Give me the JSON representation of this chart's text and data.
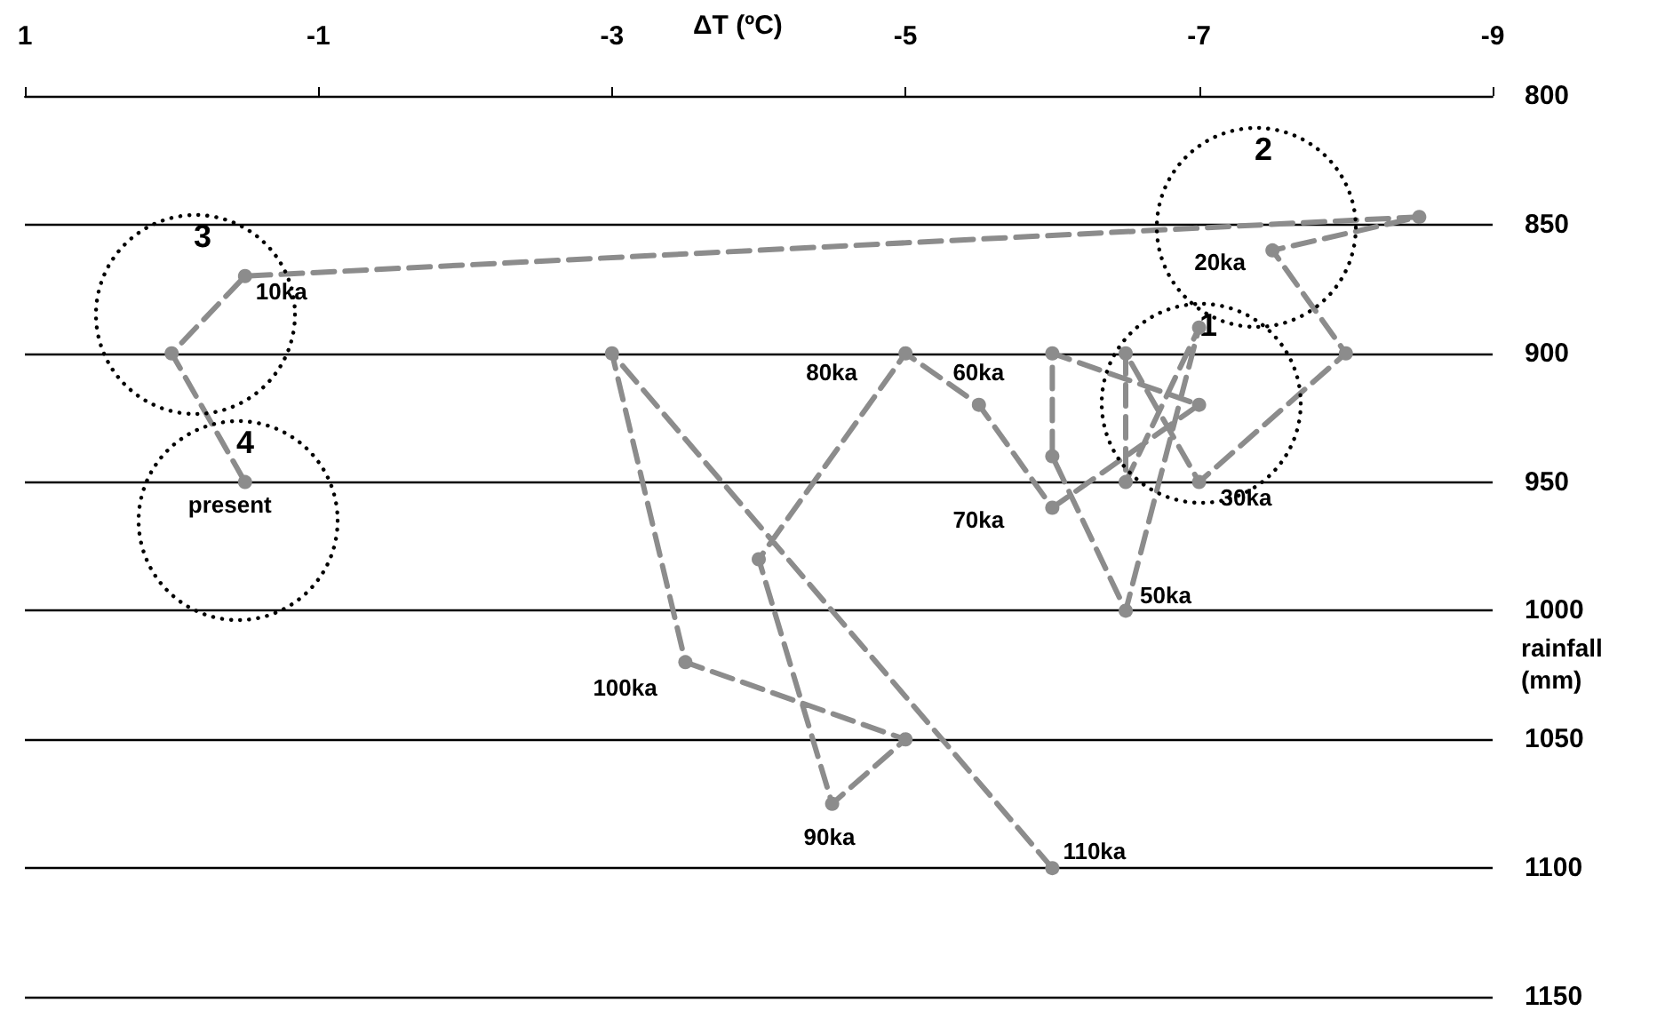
{
  "chart_data": {
    "type": "line",
    "xlabel": "ΔT (ºC)",
    "ylabel": "rainfall (mm)",
    "x": [
      -6,
      -3,
      -3.5,
      -5,
      -4.5,
      -4,
      -5,
      -5.5,
      -6,
      -7,
      -6,
      -6,
      -6.5,
      -7,
      -6.5,
      -6.5,
      -7,
      -8,
      -7.5,
      -8.5,
      -0.5,
      0,
      -0.5
    ],
    "series": [
      {
        "color": "#8c8c8c",
        "values": [
          1100,
          900,
          1020,
          1050,
          1075,
          980,
          900,
          920,
          960,
          920,
          900,
          940,
          1000,
          890,
          950,
          900,
          950,
          900,
          860,
          847,
          870,
          900,
          950
        ]
      }
    ],
    "xlim": [
      1,
      -9
    ],
    "xticks": [
      1,
      -1,
      -3,
      -5,
      -7,
      -9
    ],
    "ylim": [
      1150,
      800
    ],
    "yticks": [
      800,
      850,
      900,
      950,
      1000,
      1050,
      1100,
      1150
    ],
    "grid": "y",
    "marker": "circle",
    "line_style": "dashed",
    "annotations": [
      {
        "text": "110ka",
        "x": -6,
        "y": 1100
      },
      {
        "text": "100ka",
        "x": -3.5,
        "y": 1020
      },
      {
        "text": "90ka",
        "x": -4.5,
        "y": 1075
      },
      {
        "text": "80ka",
        "x": -5,
        "y": 900
      },
      {
        "text": "70ka",
        "x": -6,
        "y": 960
      },
      {
        "text": "60ka",
        "x": -6,
        "y": 900
      },
      {
        "text": "50ka",
        "x": -6.5,
        "y": 1000
      },
      {
        "text": "30ka",
        "x": -7,
        "y": 950
      },
      {
        "text": "20ka",
        "x": -7.5,
        "y": 860
      },
      {
        "text": "10ka",
        "x": -0.5,
        "y": 870
      },
      {
        "text": "present",
        "x": -0.5,
        "y": 950
      },
      "1",
      "2",
      "3",
      "4"
    ]
  }
}
